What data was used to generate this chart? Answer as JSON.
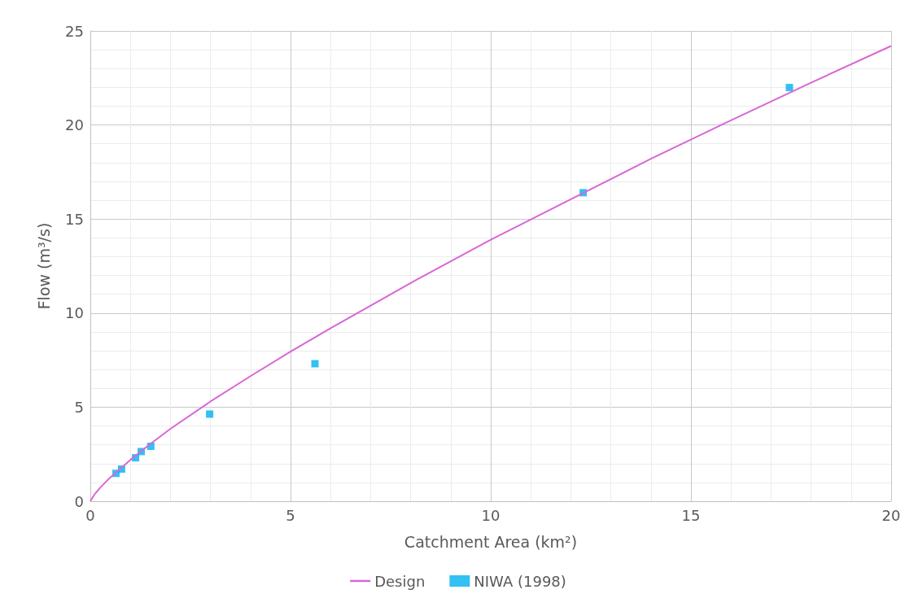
{
  "chart_data": {
    "type": "line",
    "xlabel": "Catchment Area (km²)",
    "ylabel": "Flow (m³/s)",
    "xlim": [
      0,
      20
    ],
    "xticks": [
      0,
      5,
      10,
      15,
      20
    ],
    "ylim": [
      0,
      25
    ],
    "yticks": [
      0,
      5,
      10,
      15,
      20,
      25
    ],
    "grid": true,
    "legend": "bottom",
    "series": [
      {
        "name": "Design",
        "color": "#d966d6",
        "marker": "none",
        "x": [
          0,
          0.1,
          0.25,
          0.5,
          1,
          1.5,
          2,
          3,
          4,
          5,
          6,
          7,
          8,
          10,
          12,
          14,
          16,
          18,
          20
        ],
        "values": [
          0,
          0.35,
          0.73,
          1.27,
          2.2,
          3.05,
          3.85,
          5.3,
          6.65,
          7.95,
          9.2,
          10.4,
          11.6,
          13.9,
          16.05,
          18.2,
          20.25,
          22.25,
          24.2
        ]
      },
      {
        "name": "NIWA (1998)",
        "type": "scatter",
        "color": "#00b0f0",
        "marker": "square",
        "x": [
          0.64,
          0.78,
          1.13,
          1.27,
          1.51,
          2.98,
          5.61,
          12.31,
          17.46
        ],
        "values": [
          1.48,
          1.71,
          2.31,
          2.64,
          2.92,
          4.63,
          7.31,
          16.4,
          21.99
        ]
      }
    ]
  }
}
